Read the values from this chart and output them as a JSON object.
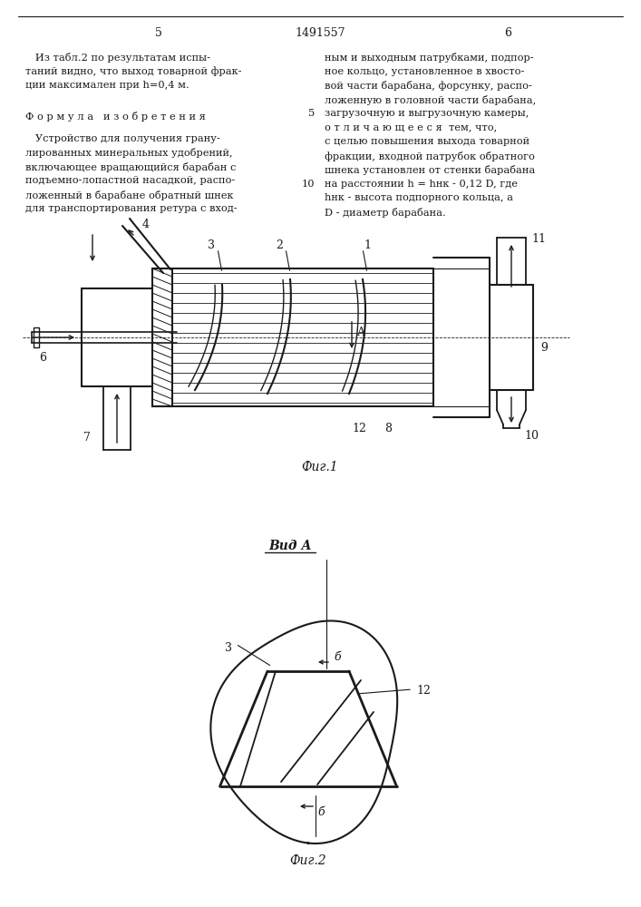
{
  "page_width": 7.07,
  "page_height": 10.0,
  "bg_color": "#ffffff",
  "text_color": "#1a1a1a",
  "line_color": "#1a1a1a",
  "patent_number": "1491557",
  "page_left": "5",
  "page_right": "6",
  "left_col_text": [
    "   Из табл.2 по результатам испы-",
    "таний видно, что выход товарной фрак-",
    "ции максимален при h=0,4 м."
  ],
  "formula_header": "Ф о р м у л а   и з о б р е т е н и я",
  "formula_text": [
    "   Устройство для получения грану-",
    "лированных минеральных удобрений,",
    "включающее вращающийся барабан с",
    "подъемно-лопастной насадкой, распо-",
    "ложенный в барабане обратный шнек",
    "для транспортирования ретура с вход-"
  ],
  "right_col_text": [
    "ным и выходным патрубками, подпор-",
    "ное кольцо, установленное в хвосто-",
    "вой части барабана, форсунку, распо-",
    "ложенную в головной части барабана,",
    "загрузочную и выгрузочную камеры,",
    "о т л и ч а ю щ е е с я  тем, что,",
    "с целью повышения выхода товарной",
    "фракции, входной патрубок обратного",
    "шнека установлен от стенки барабана",
    "на расстоянии h = hнк - 0,12 D, где",
    "hнк - высота подпорного кольца, а",
    "D - диаметр барабана."
  ],
  "fig1_label": "Фиг.1",
  "fig2_label": "Фиг.2",
  "vid_a_label": "Вид А"
}
